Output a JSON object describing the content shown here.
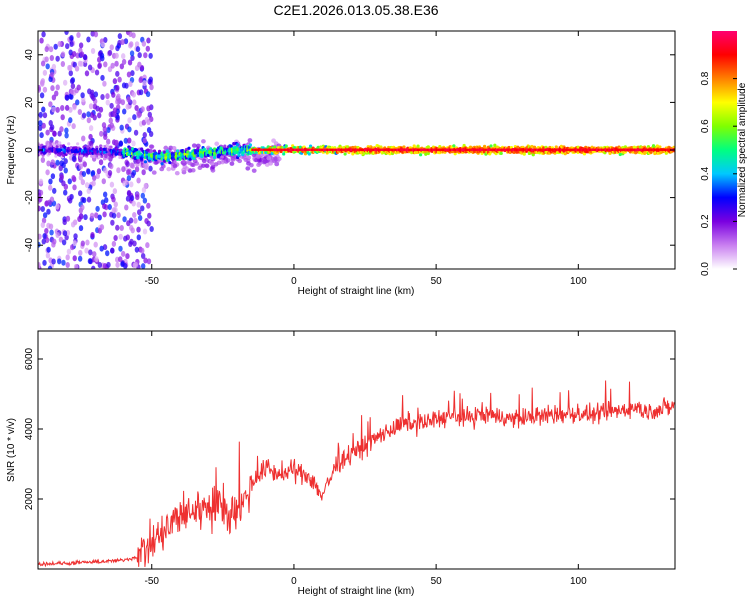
{
  "title": "C2E1.2026.013.05.38.E36",
  "chart_data": [
    {
      "type": "heatmap",
      "name": "spectrogram",
      "xlabel": "Height of straight line (km)",
      "ylabel": "Frequency (Hz)",
      "xlim": [
        -90,
        134
      ],
      "ylim": [
        -50,
        50
      ],
      "xticks": [
        -50,
        0,
        50,
        100
      ],
      "xtick_labels": [
        "-50",
        "0",
        "50",
        "100"
      ],
      "yticks": [
        40,
        20,
        0,
        -20,
        -40
      ],
      "ytick_labels": [
        "40",
        "20",
        "0",
        "-20",
        "-40"
      ],
      "description_ridge": [
        {
          "x": -85,
          "y": 0
        },
        {
          "x": -60,
          "y": -1
        },
        {
          "x": -45,
          "y": -3
        },
        {
          "x": -30,
          "y": -1
        },
        {
          "x": -20,
          "y": 0
        },
        {
          "x": 0,
          "y": 0
        },
        {
          "x": 50,
          "y": 0
        },
        {
          "x": 100,
          "y": 0
        },
        {
          "x": 130,
          "y": 0
        }
      ],
      "colorbar": {
        "label": "Normalized spectral amplitude",
        "range": [
          0,
          1
        ],
        "ticks": [
          0.0,
          0.2,
          0.4,
          0.6,
          0.8
        ],
        "tick_labels": [
          "0.0",
          "0.2",
          "0.4",
          "0.6",
          "0.8"
        ],
        "colors": [
          "#ffffff",
          "#c97ff0",
          "#7a00e0",
          "#0000ff",
          "#00c8ff",
          "#00ff80",
          "#80ff00",
          "#ffff00",
          "#ff8000",
          "#ff0000",
          "#ff0070"
        ]
      }
    },
    {
      "type": "line",
      "name": "snr",
      "xlabel": "Height of straight line (km)",
      "ylabel": "SNR (10 * v/v)",
      "xlim": [
        -90,
        134
      ],
      "ylim": [
        0,
        6800
      ],
      "xticks": [
        -50,
        0,
        50,
        100
      ],
      "xtick_labels": [
        "-50",
        "0",
        "50",
        "100"
      ],
      "yticks": [
        2000,
        4000,
        6000
      ],
      "ytick_labels": [
        "2000",
        "4000",
        "6000"
      ],
      "color": "#ee3030",
      "series": [
        {
          "name": "SNR",
          "x": [
            -90,
            -80,
            -70,
            -60,
            -55,
            -50,
            -45,
            -40,
            -35,
            -30,
            -25,
            -20,
            -15,
            -10,
            -5,
            0,
            5,
            10,
            15,
            20,
            25,
            30,
            35,
            40,
            45,
            50,
            55,
            60,
            65,
            70,
            75,
            80,
            85,
            90,
            95,
            100,
            105,
            110,
            115,
            120,
            125,
            130,
            134
          ],
          "y": [
            150,
            160,
            200,
            250,
            350,
            700,
            1100,
            1500,
            1700,
            1800,
            1700,
            1600,
            2400,
            2900,
            2700,
            2800,
            2700,
            2100,
            3000,
            3300,
            3500,
            3800,
            4000,
            4200,
            4150,
            4300,
            4350,
            4300,
            4400,
            4400,
            4300,
            4300,
            4350,
            4400,
            4400,
            4450,
            4400,
            4450,
            4550,
            4600,
            4500,
            4600,
            4650
          ]
        }
      ]
    }
  ]
}
